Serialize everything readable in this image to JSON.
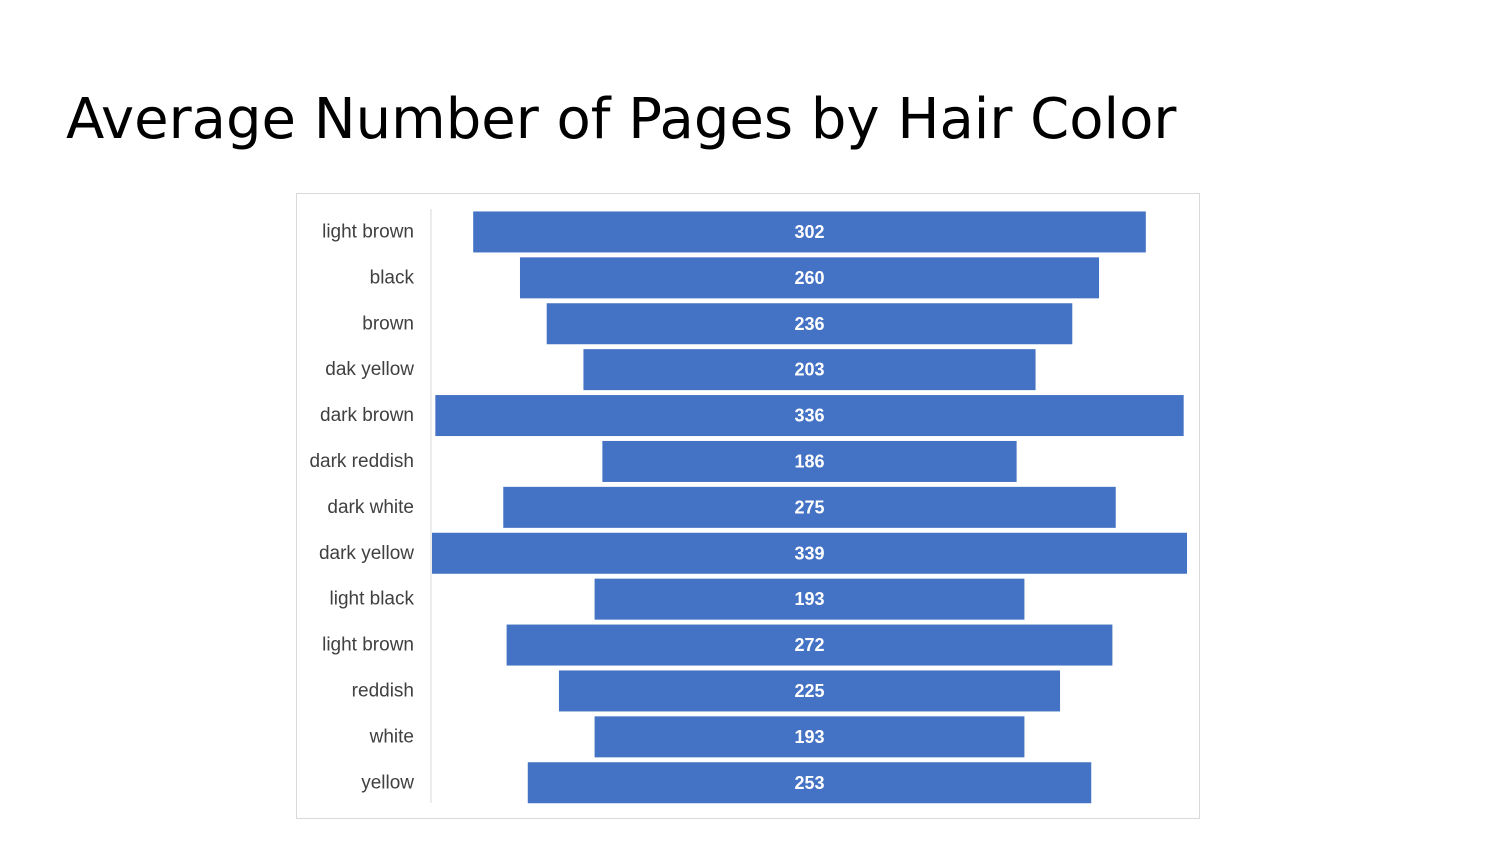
{
  "slide": {
    "title": "Average Number of Pages by Hair Color"
  },
  "chart_data": {
    "type": "bar",
    "orientation": "horizontal",
    "style": "centered-funnel",
    "title": "",
    "xlabel": "",
    "ylabel": "",
    "categories": [
      "light brown",
      "black",
      "brown",
      "dak yellow",
      "dark brown",
      "dark reddish",
      "dark white",
      "dark yellow",
      "light black",
      "light brown",
      "reddish",
      "white",
      "yellow"
    ],
    "values": [
      302,
      260,
      236,
      203,
      336,
      186,
      275,
      339,
      193,
      272,
      225,
      193,
      253
    ],
    "data_labels": true,
    "grid": false,
    "legend": "none",
    "colors": {
      "bar": "#4472C4",
      "bar_label": "#FFFFFF",
      "category_label": "#404040",
      "axis_line": "#D9D9D9"
    }
  }
}
